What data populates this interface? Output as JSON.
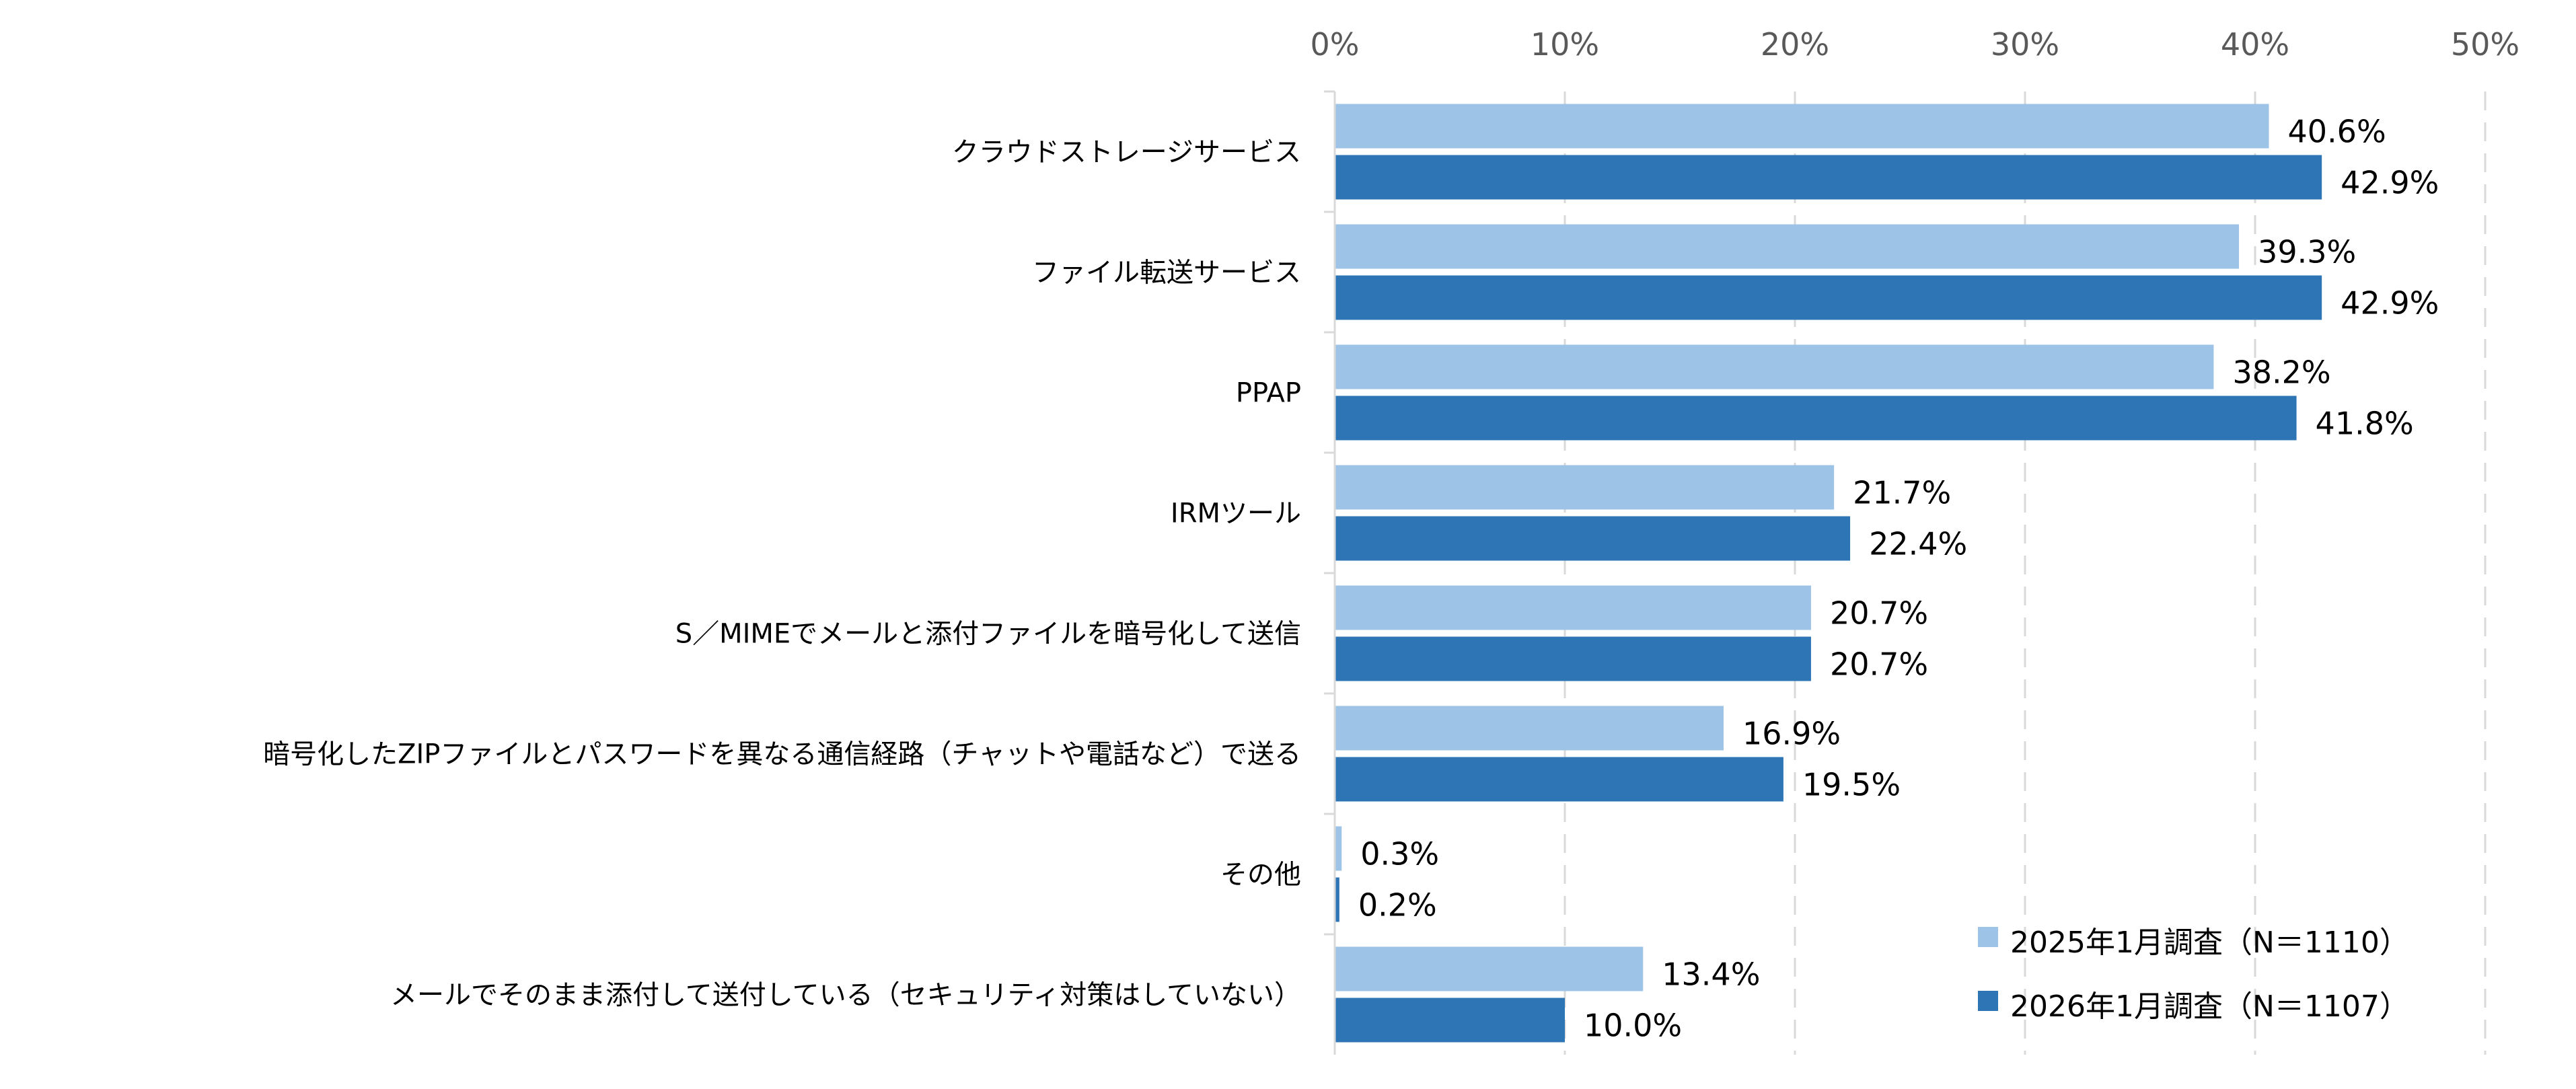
{
  "chart_data": {
    "type": "bar",
    "orientation": "horizontal",
    "title": "",
    "xlabel": "",
    "ylabel": "",
    "xlim": [
      0,
      50
    ],
    "x_ticks": [
      "0%",
      "10%",
      "20%",
      "30%",
      "40%",
      "50%"
    ],
    "grid": "vertical dashed",
    "legend_position": "bottom-right",
    "categories": [
      "クラウドストレージサービス",
      "ファイル転送サービス",
      "PPAP",
      "IRMツール",
      "S／MIMEでメールと添付ファイルを暗号化して送信",
      "暗号化したZIPファイルとパスワードを異なる通信経路（チャットや電話など）で送る",
      "その他",
      "メールでそのまま添付して送付している（セキュリティ対策はしていない）"
    ],
    "series": [
      {
        "name": "2025年1月調査（N＝1110）",
        "color": "#9DC3E6",
        "values": [
          40.6,
          39.3,
          38.2,
          21.7,
          20.7,
          16.9,
          0.3,
          13.4
        ],
        "labels": [
          "40.6%",
          "39.3%",
          "38.2%",
          "21.7%",
          "20.7%",
          "16.9%",
          "0.3%",
          "13.4%"
        ]
      },
      {
        "name": "2026年1月調査（N＝1107）",
        "color": "#2E75B6",
        "values": [
          42.9,
          42.9,
          41.8,
          22.4,
          20.7,
          19.5,
          0.2,
          10.0
        ],
        "labels": [
          "42.9%",
          "42.9%",
          "41.8%",
          "22.4%",
          "20.7%",
          "19.5%",
          "0.2%",
          "10.0%"
        ]
      }
    ]
  }
}
